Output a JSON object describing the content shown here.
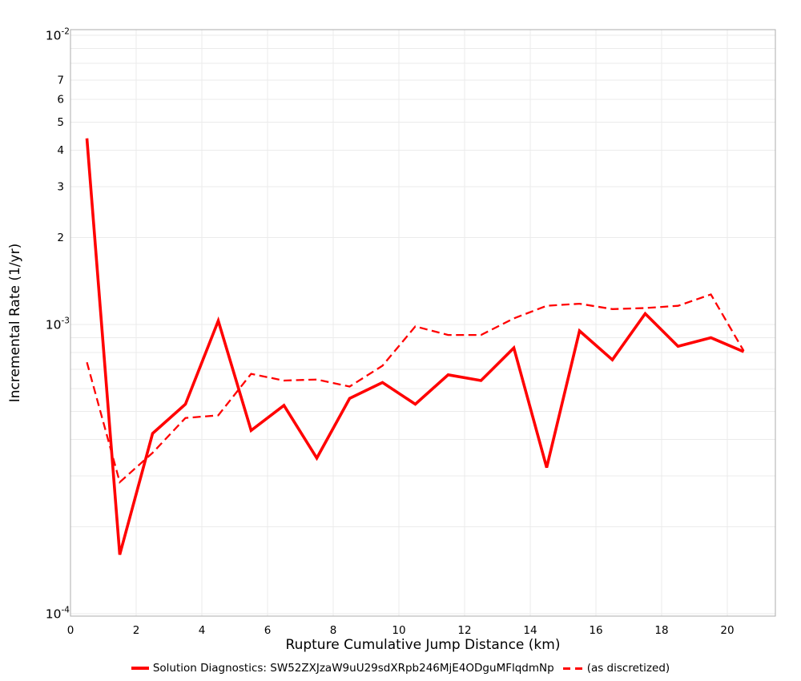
{
  "figure": {
    "background": "#ffffff",
    "plot_border_color": "#adadad",
    "grid_color": "#ebebeb"
  },
  "legend": {
    "items": [
      {
        "label": "Solution Diagnostics: SW52ZXJzaW9uU29sdXRpb246MjE4ODguMFlqdmNp",
        "swatch": "solid-line",
        "color": "#ff0000"
      },
      {
        "label": "(as discretized)",
        "swatch": "dashed-line",
        "color": "#ff0000"
      }
    ]
  },
  "chart_data": {
    "type": "line",
    "title": "",
    "xlabel": "Rupture Cumulative Jump Distance (km)",
    "ylabel": "Incremental Rate (1/yr)",
    "grid": true,
    "legend_position": "bottom",
    "x_axis": {
      "ticks": [
        0,
        2,
        4,
        6,
        8,
        10,
        12,
        14,
        16,
        18,
        20
      ],
      "range": [
        0,
        21.46
      ]
    },
    "y_axis": {
      "scale": "log",
      "range": [
        0.0001,
        0.01
      ],
      "decade_labels": [
        {
          "base": "10",
          "exponent": "-2",
          "value": 0.01
        },
        {
          "base": "10",
          "exponent": "-3",
          "value": 0.001
        },
        {
          "base": "10",
          "exponent": "-4",
          "value": 0.0001
        }
      ],
      "minor_label_mantissas": [
        7,
        6,
        5,
        4,
        3,
        2
      ],
      "minor_label_decades": [
        -3,
        -4
      ]
    },
    "x": [
      0.5,
      1.5,
      2.5,
      3.5,
      4.5,
      5.5,
      6.5,
      7.5,
      8.5,
      9.5,
      10.5,
      11.5,
      12.5,
      13.5,
      14.5,
      15.5,
      16.5,
      17.5,
      18.5,
      19.5,
      20.5
    ],
    "series": [
      {
        "name": "Solution Diagnostics: SW52ZXJzaW9uU29sdXRpb246MjE4ODguMFlqdmNp",
        "style": "solid",
        "color": "#ff0000",
        "stroke_width": 3.6,
        "values": [
          0.0044,
          0.00016,
          0.00042,
          0.00053,
          0.00103,
          0.00043,
          0.000525,
          0.000345,
          0.000555,
          0.00063,
          0.00053,
          0.00067,
          0.00064,
          0.00083,
          0.00032,
          0.00095,
          0.000755,
          0.00109,
          0.00084,
          0.0009,
          0.000805
        ]
      },
      {
        "name": "(as discretized)",
        "style": "dashed",
        "color": "#ff0000",
        "stroke_width": 2.3,
        "values": [
          0.00074,
          0.000285,
          0.00036,
          0.000475,
          0.000485,
          0.000675,
          0.00064,
          0.000645,
          0.00061,
          0.00072,
          0.000985,
          0.00092,
          0.00092,
          0.00105,
          0.00116,
          0.00118,
          0.00113,
          0.00114,
          0.00116,
          0.00127,
          0.00081
        ]
      }
    ]
  }
}
